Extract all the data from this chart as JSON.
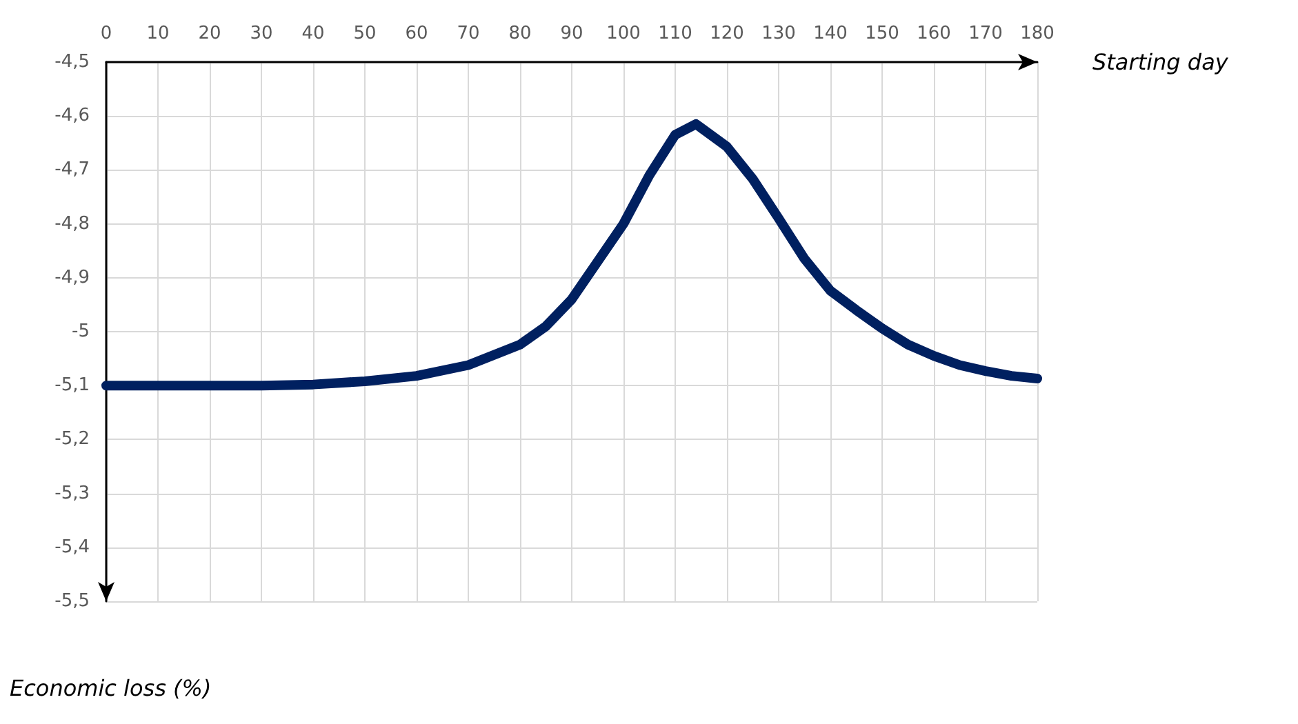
{
  "chart_data": {
    "type": "line",
    "xlabel": "Starting day",
    "ylabel": "Economic loss (%)",
    "xlim": [
      0,
      180
    ],
    "xticks": [
      0,
      10,
      20,
      30,
      40,
      50,
      60,
      70,
      80,
      90,
      100,
      110,
      120,
      130,
      140,
      150,
      160,
      170,
      180
    ],
    "ylim": [
      -5.5,
      -4.5
    ],
    "yticks": [
      {
        "value": -4.5,
        "label": "-4,5"
      },
      {
        "value": -4.6,
        "label": "-4,6"
      },
      {
        "value": -4.7,
        "label": "-4,7"
      },
      {
        "value": -4.8,
        "label": "-4,8"
      },
      {
        "value": -4.9,
        "label": "-4,9"
      },
      {
        "value": -5,
        "label": "-5"
      },
      {
        "value": -5.1,
        "label": "-5,1"
      },
      {
        "value": -5.2,
        "label": "-5,2"
      },
      {
        "value": -5.3,
        "label": "-5,3"
      },
      {
        "value": -5.4,
        "label": "-5,4"
      },
      {
        "value": -5.5,
        "label": "-5,5"
      }
    ],
    "grid": true,
    "line_style": "solid",
    "series": [
      {
        "color": "#002060",
        "x": [
          0,
          10,
          20,
          30,
          40,
          50,
          60,
          70,
          80,
          85,
          90,
          95,
          100,
          105,
          110,
          114,
          120,
          125,
          130,
          135,
          140,
          145,
          150,
          155,
          160,
          165,
          170,
          175,
          180
        ],
        "values": [
          -5.1,
          -5.1,
          -5.1,
          -5.1,
          -5.098,
          -5.092,
          -5.082,
          -5.062,
          -5.024,
          -4.99,
          -4.94,
          -4.87,
          -4.8,
          -4.71,
          -4.635,
          -4.615,
          -4.657,
          -4.717,
          -4.79,
          -4.865,
          -4.924,
          -4.96,
          -4.994,
          -5.024,
          -5.045,
          -5.062,
          -5.073,
          -5.082,
          -5.087
        ]
      }
    ]
  }
}
